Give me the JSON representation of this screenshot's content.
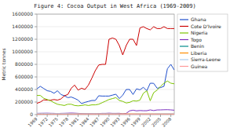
{
  "chart_data": {
    "type": "line",
    "title": "Figure 4: Cocoa Output in West Africa (1969-2009)",
    "y_label": "Metric tonnes",
    "x": [
      1969,
      1970,
      1971,
      1972,
      1973,
      1974,
      1975,
      1976,
      1977,
      1978,
      1979,
      1980,
      1981,
      1982,
      1983,
      1984,
      1985,
      1986,
      1987,
      1988,
      1989,
      1990,
      1991,
      1992,
      1993,
      1994,
      1995,
      1996,
      1997,
      1998,
      1999,
      2000,
      2001,
      2002,
      2003,
      2004,
      2005,
      2006,
      2007,
      2008,
      2009
    ],
    "series": [
      {
        "name": "Ghana",
        "color": "#1F4FCC",
        "values": [
          410000,
          450000,
          415000,
          380000,
          370000,
          340000,
          380000,
          320000,
          300000,
          270000,
          280000,
          258000,
          230000,
          175000,
          195000,
          210000,
          225000,
          225000,
          300000,
          295000,
          295000,
          295000,
          310000,
          325000,
          255000,
          310000,
          400000,
          400000,
          320000,
          410000,
          395000,
          435000,
          380000,
          500000,
          498000,
          420000,
          430000,
          450000,
          730000,
          800000,
          710000
        ]
      },
      {
        "name": "Cote D'Ivoire",
        "color": "#CC0000",
        "values": [
          180000,
          200000,
          235000,
          230000,
          230000,
          240000,
          230000,
          250000,
          300000,
          320000,
          420000,
          470000,
          390000,
          420000,
          400000,
          470000,
          580000,
          700000,
          790000,
          800000,
          800000,
          1200000,
          1220000,
          1200000,
          1100000,
          950000,
          1100000,
          1200000,
          1200000,
          1100000,
          1380000,
          1400000,
          1370000,
          1350000,
          1400000,
          1370000,
          1370000,
          1400000,
          1370000,
          1370000,
          1370000
        ]
      },
      {
        "name": "Nigeria",
        "color": "#7CC400",
        "values": [
          305000,
          305000,
          260000,
          240000,
          220000,
          190000,
          165000,
          155000,
          145000,
          165000,
          165000,
          145000,
          140000,
          145000,
          155000,
          145000,
          155000,
          155000,
          165000,
          190000,
          215000,
          240000,
          255000,
          270000,
          225000,
          210000,
          185000,
          195000,
          220000,
          215000,
          230000,
          340000,
          380000,
          220000,
          350000,
          390000,
          450000,
          500000,
          535000,
          500000,
          490000
        ]
      },
      {
        "name": "Togo",
        "color": "#7B2FBE",
        "values": [
          20000,
          21000,
          22000,
          23000,
          21000,
          20000,
          17000,
          20000,
          21000,
          23000,
          25000,
          23000,
          20000,
          17000,
          16000,
          16000,
          16000,
          14000,
          17000,
          20000,
          20000,
          23000,
          20000,
          20000,
          21000,
          14000,
          19000,
          60000,
          70000,
          60000,
          65000,
          62000,
          62000,
          75000,
          64000,
          74000,
          75000,
          77000,
          78000,
          75000,
          70000
        ]
      },
      {
        "name": "Benin",
        "color": "#008B8B",
        "values": [
          5000,
          5000,
          5000,
          5000,
          5000,
          5000,
          5000,
          5000,
          5000,
          5000,
          5000,
          5000,
          5000,
          5000,
          5000,
          5000,
          5000,
          5000,
          5000,
          5000,
          5000,
          5000,
          5000,
          5000,
          5000,
          5000,
          5000,
          5000,
          5000,
          5000,
          5000,
          5000,
          5000,
          5000,
          5000,
          5000,
          5000,
          5000,
          5000,
          5000,
          5000
        ]
      },
      {
        "name": "Liberia",
        "color": "#FF8C00",
        "values": [
          12000,
          12000,
          12000,
          12000,
          12000,
          12000,
          12000,
          12000,
          12000,
          12000,
          12000,
          12000,
          12000,
          12000,
          12000,
          12000,
          12000,
          12000,
          12000,
          12000,
          12000,
          12000,
          12000,
          12000,
          12000,
          12000,
          12000,
          12000,
          12000,
          12000,
          12000,
          12000,
          12000,
          12000,
          12000,
          12000,
          12000,
          12000,
          12000,
          12000,
          12000
        ]
      },
      {
        "name": "Sierra-Leone",
        "color": "#AACCEE",
        "values": [
          20000,
          20000,
          20000,
          18000,
          17000,
          16000,
          17000,
          17000,
          17000,
          16000,
          16000,
          15000,
          14000,
          13000,
          14000,
          14000,
          14000,
          14000,
          14000,
          15000,
          15000,
          14000,
          14000,
          14000,
          12000,
          10000,
          9000,
          9000,
          10000,
          12000,
          12000,
          12000,
          12000,
          12000,
          12000,
          14000,
          14000,
          14000,
          15000,
          15000,
          15000
        ]
      },
      {
        "name": "Guinea",
        "color": "#FF9999",
        "values": [
          8000,
          8000,
          8000,
          8000,
          8000,
          8000,
          8000,
          8000,
          8000,
          8000,
          8000,
          8000,
          8000,
          8000,
          8000,
          8000,
          8000,
          8000,
          8000,
          8000,
          8000,
          8000,
          8000,
          8000,
          8000,
          8000,
          8000,
          8000,
          8000,
          8000,
          8000,
          8000,
          8000,
          8000,
          8000,
          8000,
          8000,
          8000,
          8000,
          8000,
          8000
        ]
      }
    ],
    "xlim": [
      1969,
      2009
    ],
    "xticks": [
      1969,
      1972,
      1975,
      1978,
      1981,
      1984,
      1987,
      1990,
      1993,
      1996,
      1999,
      2002,
      2005,
      2008
    ],
    "ylim": [
      0,
      1600000
    ],
    "yticks": [
      0,
      200000,
      400000,
      600000,
      800000,
      1000000,
      1200000,
      1400000,
      1600000
    ],
    "grid": true,
    "legend": "right"
  }
}
